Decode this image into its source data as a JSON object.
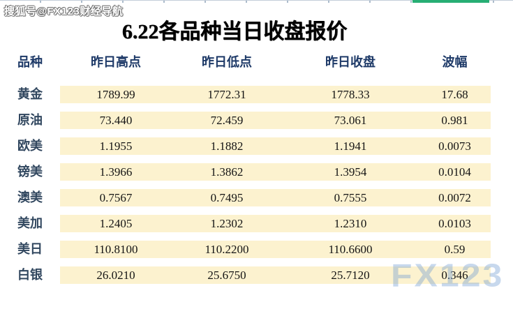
{
  "watermark_top": "搜狐号@FX123财经导航",
  "watermark_bottom": "FX123",
  "title": "6.22各品种当日收盘报价",
  "table": {
    "columns": {
      "product": "品种",
      "high": "昨日高点",
      "low": "昨日低点",
      "close": "昨日收盘",
      "range": "波幅"
    },
    "rows": [
      {
        "name": "黄金",
        "high": "1789.99",
        "low": "1772.31",
        "close": "1778.33",
        "range": "17.68"
      },
      {
        "name": "原油",
        "high": "73.440",
        "low": "72.459",
        "close": "73.061",
        "range": "0.981"
      },
      {
        "name": "欧美",
        "high": "1.1955",
        "low": "1.1882",
        "close": "1.1941",
        "range": "0.0073"
      },
      {
        "name": "镑美",
        "high": "1.3966",
        "low": "1.3862",
        "close": "1.3954",
        "range": "0.0104"
      },
      {
        "name": "澳美",
        "high": "0.7567",
        "low": "0.7495",
        "close": "0.7555",
        "range": "0.0072"
      },
      {
        "name": "美加",
        "high": "1.2405",
        "low": "1.2302",
        "close": "1.2310",
        "range": "0.0103"
      },
      {
        "name": "美日",
        "high": "110.8100",
        "low": "110.2200",
        "close": "110.6600",
        "range": "0.59"
      },
      {
        "name": "白银",
        "high": "26.0210",
        "low": "25.6750",
        "close": "25.7120",
        "range": "0.346"
      }
    ]
  },
  "colors": {
    "header_text": "#1e3a68",
    "label_text": "#31475f",
    "cell_bg": "#fcf2cf",
    "accent_green": "#27ae74",
    "watermark_blue": "#aec9e8",
    "topline_gray": "#b9c6d3"
  },
  "chart_data": {
    "type": "table",
    "title": "6.22各品种当日收盘报价",
    "columns": [
      "品种",
      "昨日高点",
      "昨日低点",
      "昨日收盘",
      "波幅"
    ],
    "rows": [
      [
        "黄金",
        1789.99,
        1772.31,
        1778.33,
        17.68
      ],
      [
        "原油",
        73.44,
        72.459,
        73.061,
        0.981
      ],
      [
        "欧美",
        1.1955,
        1.1882,
        1.1941,
        0.0073
      ],
      [
        "镑美",
        1.3966,
        1.3862,
        1.3954,
        0.0104
      ],
      [
        "澳美",
        0.7567,
        0.7495,
        0.7555,
        0.0072
      ],
      [
        "美加",
        1.2405,
        1.2302,
        1.231,
        0.0103
      ],
      [
        "美日",
        110.81,
        110.22,
        110.66,
        0.59
      ],
      [
        "白银",
        26.021,
        25.675,
        25.712,
        0.346
      ]
    ]
  }
}
